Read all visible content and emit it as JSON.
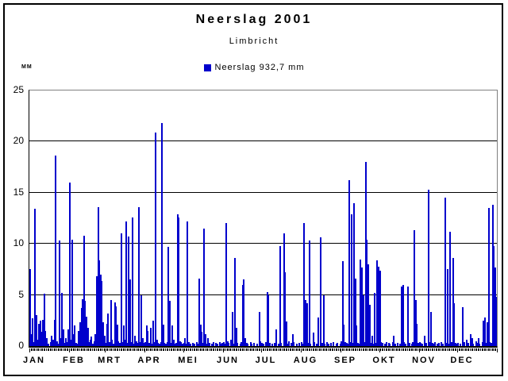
{
  "chart_data": {
    "type": "bar",
    "title": "Neerslag 2001",
    "subtitle": "Limbricht",
    "legend": "Neerslag 932,7 mm",
    "annual_total_mm": "932,7",
    "ylabel": "MM",
    "ylim": [
      0,
      25
    ],
    "yticks": [
      0,
      5,
      10,
      15,
      20,
      25
    ],
    "grid": true,
    "legend_position": "top-center",
    "bar_color": "#0000CC",
    "frame_color": "#000000",
    "plot_border_gray": "#808080",
    "months": [
      "JAN",
      "FEB",
      "MRT",
      "APR",
      "MEI",
      "JUN",
      "JUL",
      "AUG",
      "SEP",
      "OKT",
      "NOV",
      "DEC"
    ],
    "days_per_month": [
      31,
      28,
      31,
      30,
      31,
      30,
      31,
      31,
      30,
      31,
      30,
      31
    ],
    "series": [
      {
        "name": "Neerslag",
        "unit": "mm",
        "daily_values": [
          7.5,
          1.2,
          2.7,
          0.4,
          13.4,
          3.0,
          0.6,
          2.2,
          2.5,
          1.4,
          2.6,
          5.1,
          1.5,
          0.8,
          0.2,
          0,
          0.4,
          1.0,
          0.6,
          2.6,
          18.6,
          0.5,
          0.2,
          10.3,
          0.8,
          5.2,
          1.6,
          0.3,
          0.8,
          0.4,
          1.6,
          16.0,
          0.6,
          10.4,
          1.2,
          2.0,
          0.3,
          0.2,
          1.5,
          2.3,
          3.7,
          4.6,
          10.8,
          4.4,
          2.9,
          1.8,
          0.4,
          0.6,
          0.9,
          0.2,
          0.5,
          1.2,
          6.8,
          13.6,
          8.4,
          7.0,
          6.4,
          2.3,
          1.0,
          0.3,
          2.2,
          3.2,
          0.4,
          4.5,
          0.6,
          0.2,
          4.3,
          3.9,
          2.1,
          0.5,
          0.3,
          11.0,
          0.4,
          2.0,
          0.6,
          12.2,
          0.3,
          10.7,
          6.5,
          0.4,
          12.6,
          0.2,
          1.0,
          0.5,
          0.3,
          13.6,
          0.4,
          5.0,
          0.8,
          0.3,
          0.4,
          2.0,
          1.5,
          0.3,
          1.8,
          0.2,
          2.5,
          0.4,
          20.9,
          0.6,
          0.3,
          0.2,
          0.4,
          21.8,
          2.1,
          0.3,
          0.2,
          0.4,
          9.7,
          4.4,
          0.3,
          2.0,
          0.6,
          0.2,
          0.3,
          12.9,
          12.6,
          0.5,
          0.4,
          0.2,
          0.3,
          0.8,
          0.2,
          12.2,
          0.4,
          0.2,
          0,
          0.3,
          0.2,
          0,
          0.4,
          0.2,
          6.6,
          2.1,
          1.4,
          0.3,
          11.5,
          1.2,
          0.2,
          0.8,
          0.3,
          0,
          0.2,
          0.4,
          0,
          0.3,
          0.2,
          0,
          0.4,
          0.2,
          0.3,
          0.4,
          0.2,
          12.0,
          0.5,
          0.3,
          0,
          0.6,
          3.3,
          0.2,
          8.6,
          1.8,
          0.3,
          0,
          0.2,
          0.4,
          6.0,
          6.5,
          0.8,
          0.3,
          0.2,
          0,
          0.4,
          0.2,
          0,
          0.3,
          0,
          0.2,
          0,
          3.3,
          0.5,
          0.3,
          0.2,
          0,
          0.4,
          5.3,
          5.0,
          0.3,
          0,
          0.2,
          0,
          0.3,
          1.6,
          0,
          0.2,
          9.8,
          0.3,
          0,
          11.0,
          7.2,
          2.4,
          0.2,
          0.5,
          0,
          0.3,
          1.2,
          0.4,
          0,
          0.2,
          0,
          0.3,
          0,
          0.4,
          0.2,
          12.0,
          4.5,
          4.2,
          0.3,
          10.3,
          0.2,
          0,
          1.3,
          0.4,
          0,
          0.2,
          2.8,
          0,
          10.6,
          0.3,
          5.0,
          0.2,
          0,
          0.4,
          0.2,
          0,
          0.3,
          0,
          0.4,
          0,
          0.2,
          0.3,
          0,
          0.2,
          0.5,
          8.3,
          2.1,
          0.4,
          0.3,
          0.2,
          16.2,
          0.4,
          12.9,
          0.3,
          14.0,
          6.6,
          2.0,
          0.3,
          0.2,
          8.5,
          7.7,
          5.0,
          0.4,
          18.0,
          10.4,
          8.0,
          4.0,
          0.3,
          1.0,
          0.2,
          5.2,
          0.3,
          8.4,
          7.8,
          7.4,
          0.4,
          0.3,
          0,
          0.2,
          0.4,
          0,
          0.3,
          0.2,
          0,
          0.4,
          1.0,
          0.2,
          0,
          0.3,
          0,
          0.2,
          5.8,
          6.0,
          0.4,
          0.2,
          0,
          5.8,
          0.3,
          0,
          0.2,
          0.4,
          11.3,
          4.5,
          2.2,
          0.3,
          0.4,
          0.3,
          0.2,
          0,
          1.0,
          0.3,
          0,
          15.3,
          0.4,
          3.3,
          0.3,
          0.2,
          0.4,
          0,
          0.2,
          0.3,
          0,
          0.4,
          0.2,
          0,
          14.5,
          0.3,
          7.5,
          0.2,
          11.2,
          0.4,
          8.6,
          4.2,
          0.3,
          0.2,
          0.3,
          0,
          0.2,
          0,
          3.8,
          0.4,
          0,
          0.6,
          0.3,
          0,
          1.2,
          0.8,
          0.2,
          0,
          0.5,
          0.3,
          0.8,
          0.2,
          0,
          0.4,
          2.5,
          2.8,
          0.3,
          2.3,
          13.5,
          0.4,
          0.3,
          13.8,
          9.8,
          7.7,
          4.8
        ]
      }
    ]
  }
}
